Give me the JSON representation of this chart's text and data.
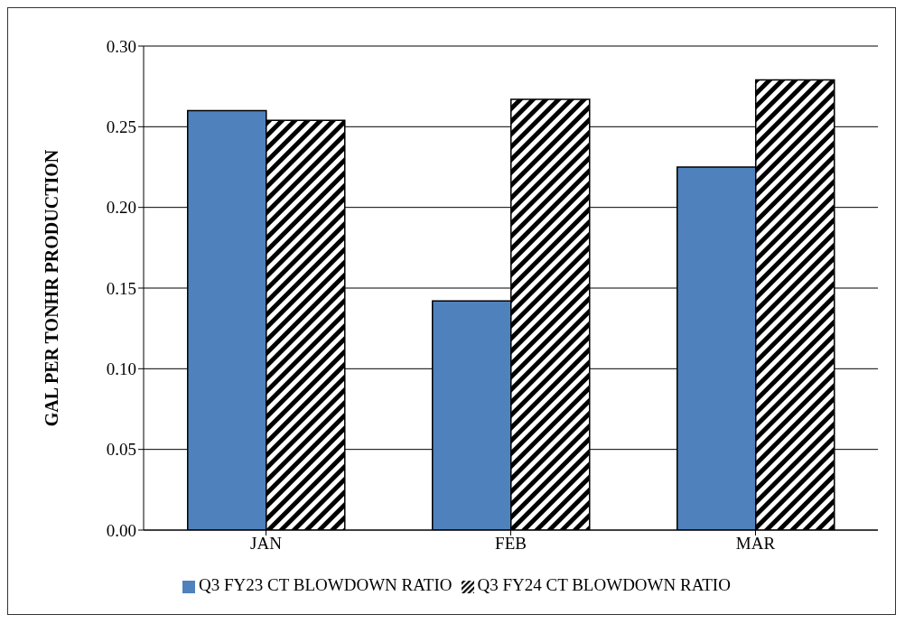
{
  "chart_data": {
    "type": "bar",
    "ylabel": "GAL PER TONHR PRODUCTION",
    "categories": [
      "JAN",
      "FEB",
      "MAR"
    ],
    "series": [
      {
        "name": "Q3 FY23 CT BLOWDOWN RATIO",
        "color": "#4f81bd",
        "values": [
          0.26,
          0.142,
          0.225
        ]
      },
      {
        "name": "Q3 FY24 CT BLOWDOWN RATIO",
        "color": "#000000",
        "values": [
          0.254,
          0.267,
          0.279
        ]
      }
    ],
    "ylim": [
      0,
      0.3
    ],
    "yticks": [
      {
        "value": 0,
        "label": "0.00"
      },
      {
        "value": 0.05,
        "label": "0.05"
      },
      {
        "value": 0.1,
        "label": "0.10"
      },
      {
        "value": 0.15,
        "label": "0.15"
      },
      {
        "value": 0.2,
        "label": "0.20"
      },
      {
        "value": 0.25,
        "label": "0.25"
      },
      {
        "value": 0.3,
        "label": "0.30"
      }
    ],
    "grid": "y",
    "legend": "bottom"
  }
}
